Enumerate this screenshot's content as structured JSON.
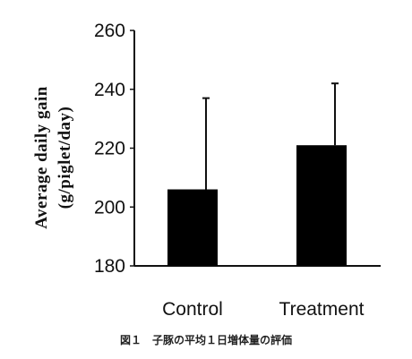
{
  "chart_data": {
    "type": "bar",
    "categories": [
      "Control",
      "Treatment"
    ],
    "values": [
      206,
      221
    ],
    "error_upper": [
      237,
      242
    ],
    "ylabel_line1": "Average daily gain",
    "ylabel_line2": "(g/piglet/day)",
    "ylim": [
      180,
      260
    ],
    "yticks": [
      180,
      200,
      220,
      240,
      260
    ],
    "bar_color": "#000000"
  },
  "caption": "図１　子豚の平均１日増体量の評価"
}
